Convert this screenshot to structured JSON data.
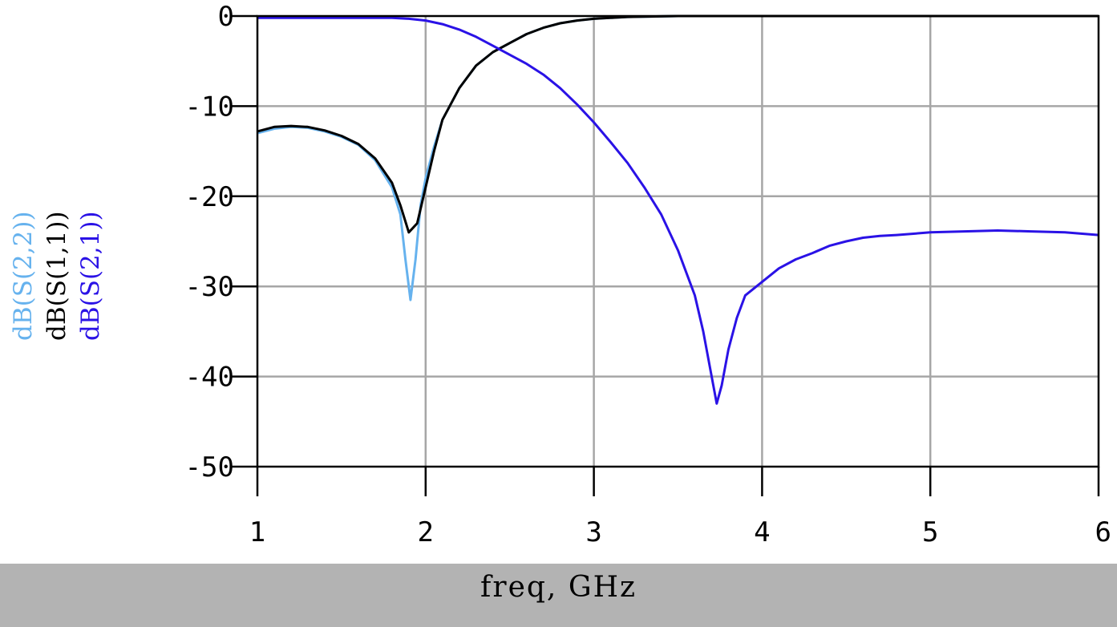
{
  "chart_data": {
    "type": "line",
    "xlabel": "freq, GHz",
    "xlim": [
      1,
      6
    ],
    "ylim": [
      -50,
      0
    ],
    "xticks": [
      1,
      2,
      3,
      4,
      5,
      6
    ],
    "yticks": [
      0,
      -10,
      -20,
      -30,
      -40,
      -50
    ],
    "grid": true,
    "series": [
      {
        "name": "dB(S(2,2))",
        "color": "#66b2ee",
        "points": [
          [
            1.0,
            -13.0
          ],
          [
            1.1,
            -12.5
          ],
          [
            1.2,
            -12.3
          ],
          [
            1.3,
            -12.4
          ],
          [
            1.4,
            -12.8
          ],
          [
            1.5,
            -13.4
          ],
          [
            1.6,
            -14.3
          ],
          [
            1.7,
            -16.0
          ],
          [
            1.8,
            -19.0
          ],
          [
            1.85,
            -22.0
          ],
          [
            1.88,
            -27.0
          ],
          [
            1.91,
            -31.5
          ],
          [
            1.94,
            -27.0
          ],
          [
            1.97,
            -21.0
          ],
          [
            2.0,
            -18.0
          ],
          [
            2.05,
            -14.5
          ],
          [
            2.1,
            -11.5
          ],
          [
            2.2,
            -8.0
          ],
          [
            2.3,
            -5.5
          ],
          [
            2.4,
            -4.0
          ],
          [
            2.5,
            -3.0
          ],
          [
            2.6,
            -2.0
          ],
          [
            2.7,
            -1.3
          ],
          [
            2.8,
            -0.8
          ],
          [
            2.9,
            -0.5
          ],
          [
            3.0,
            -0.3
          ],
          [
            3.2,
            -0.1
          ],
          [
            3.5,
            0.0
          ],
          [
            4.0,
            0.0
          ],
          [
            5.0,
            0.0
          ],
          [
            6.0,
            0.0
          ]
        ]
      },
      {
        "name": "dB(S(1,1))",
        "color": "#000000",
        "points": [
          [
            1.0,
            -12.8
          ],
          [
            1.1,
            -12.3
          ],
          [
            1.2,
            -12.2
          ],
          [
            1.3,
            -12.3
          ],
          [
            1.4,
            -12.7
          ],
          [
            1.5,
            -13.3
          ],
          [
            1.6,
            -14.2
          ],
          [
            1.7,
            -15.8
          ],
          [
            1.8,
            -18.5
          ],
          [
            1.85,
            -21.0
          ],
          [
            1.9,
            -24.0
          ],
          [
            1.95,
            -23.0
          ],
          [
            2.0,
            -19.0
          ],
          [
            2.05,
            -15.0
          ],
          [
            2.1,
            -11.5
          ],
          [
            2.2,
            -8.0
          ],
          [
            2.3,
            -5.5
          ],
          [
            2.4,
            -4.0
          ],
          [
            2.5,
            -3.0
          ],
          [
            2.6,
            -2.0
          ],
          [
            2.7,
            -1.3
          ],
          [
            2.8,
            -0.8
          ],
          [
            2.9,
            -0.5
          ],
          [
            3.0,
            -0.3
          ],
          [
            3.2,
            -0.1
          ],
          [
            3.5,
            0.0
          ],
          [
            4.0,
            0.0
          ],
          [
            5.0,
            0.0
          ],
          [
            6.0,
            0.0
          ]
        ]
      },
      {
        "name": "dB(S(2,1))",
        "color": "#2a12e6",
        "points": [
          [
            1.0,
            -0.2
          ],
          [
            1.2,
            -0.2
          ],
          [
            1.4,
            -0.2
          ],
          [
            1.6,
            -0.2
          ],
          [
            1.8,
            -0.2
          ],
          [
            1.9,
            -0.3
          ],
          [
            2.0,
            -0.5
          ],
          [
            2.1,
            -0.9
          ],
          [
            2.2,
            -1.5
          ],
          [
            2.3,
            -2.3
          ],
          [
            2.4,
            -3.3
          ],
          [
            2.5,
            -4.3
          ],
          [
            2.6,
            -5.3
          ],
          [
            2.7,
            -6.5
          ],
          [
            2.8,
            -8.0
          ],
          [
            2.9,
            -9.8
          ],
          [
            3.0,
            -11.8
          ],
          [
            3.1,
            -14.0
          ],
          [
            3.2,
            -16.3
          ],
          [
            3.3,
            -19.0
          ],
          [
            3.4,
            -22.0
          ],
          [
            3.5,
            -26.0
          ],
          [
            3.6,
            -31.0
          ],
          [
            3.65,
            -35.0
          ],
          [
            3.7,
            -40.0
          ],
          [
            3.73,
            -43.0
          ],
          [
            3.76,
            -41.0
          ],
          [
            3.8,
            -37.0
          ],
          [
            3.85,
            -33.5
          ],
          [
            3.9,
            -31.0
          ],
          [
            4.0,
            -29.5
          ],
          [
            4.1,
            -28.0
          ],
          [
            4.2,
            -27.0
          ],
          [
            4.3,
            -26.3
          ],
          [
            4.4,
            -25.5
          ],
          [
            4.5,
            -25.0
          ],
          [
            4.6,
            -24.6
          ],
          [
            4.7,
            -24.4
          ],
          [
            4.8,
            -24.3
          ],
          [
            5.0,
            -24.0
          ],
          [
            5.2,
            -23.9
          ],
          [
            5.4,
            -23.8
          ],
          [
            5.6,
            -23.9
          ],
          [
            5.8,
            -24.0
          ],
          [
            6.0,
            -24.3
          ]
        ]
      }
    ]
  }
}
